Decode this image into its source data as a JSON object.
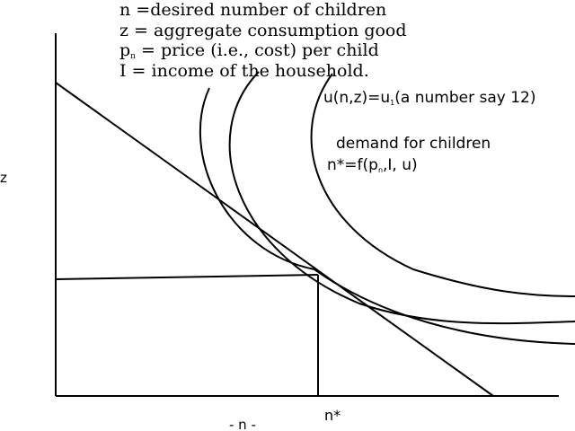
{
  "definitions": [
    {
      "symbol": "n",
      "sub": "",
      "eq": " =",
      "text": "desired number of children"
    },
    {
      "symbol": "z",
      "sub": "",
      "eq": " = ",
      "text": "aggregate consumption good"
    },
    {
      "symbol": "p",
      "sub": "n",
      "eq": " = ",
      "text": "price (i.e., cost) per child"
    },
    {
      "symbol": "I",
      "sub": "",
      "eq": " = ",
      "text": "income of the household."
    }
  ],
  "utility_label": {
    "pre": "u(n,z)=u",
    "sub": "1",
    "post": "(a number say 12)"
  },
  "demand": {
    "title": "demand for children",
    "eq_pre": "n*=f(p",
    "eq_sub": "n",
    "eq_post": ",I, u)"
  },
  "axes": {
    "y_label": "z",
    "x_label": "- n -",
    "optimum_label": "n*"
  },
  "colors": {
    "ink": "#000000",
    "background": "#ffffff"
  }
}
